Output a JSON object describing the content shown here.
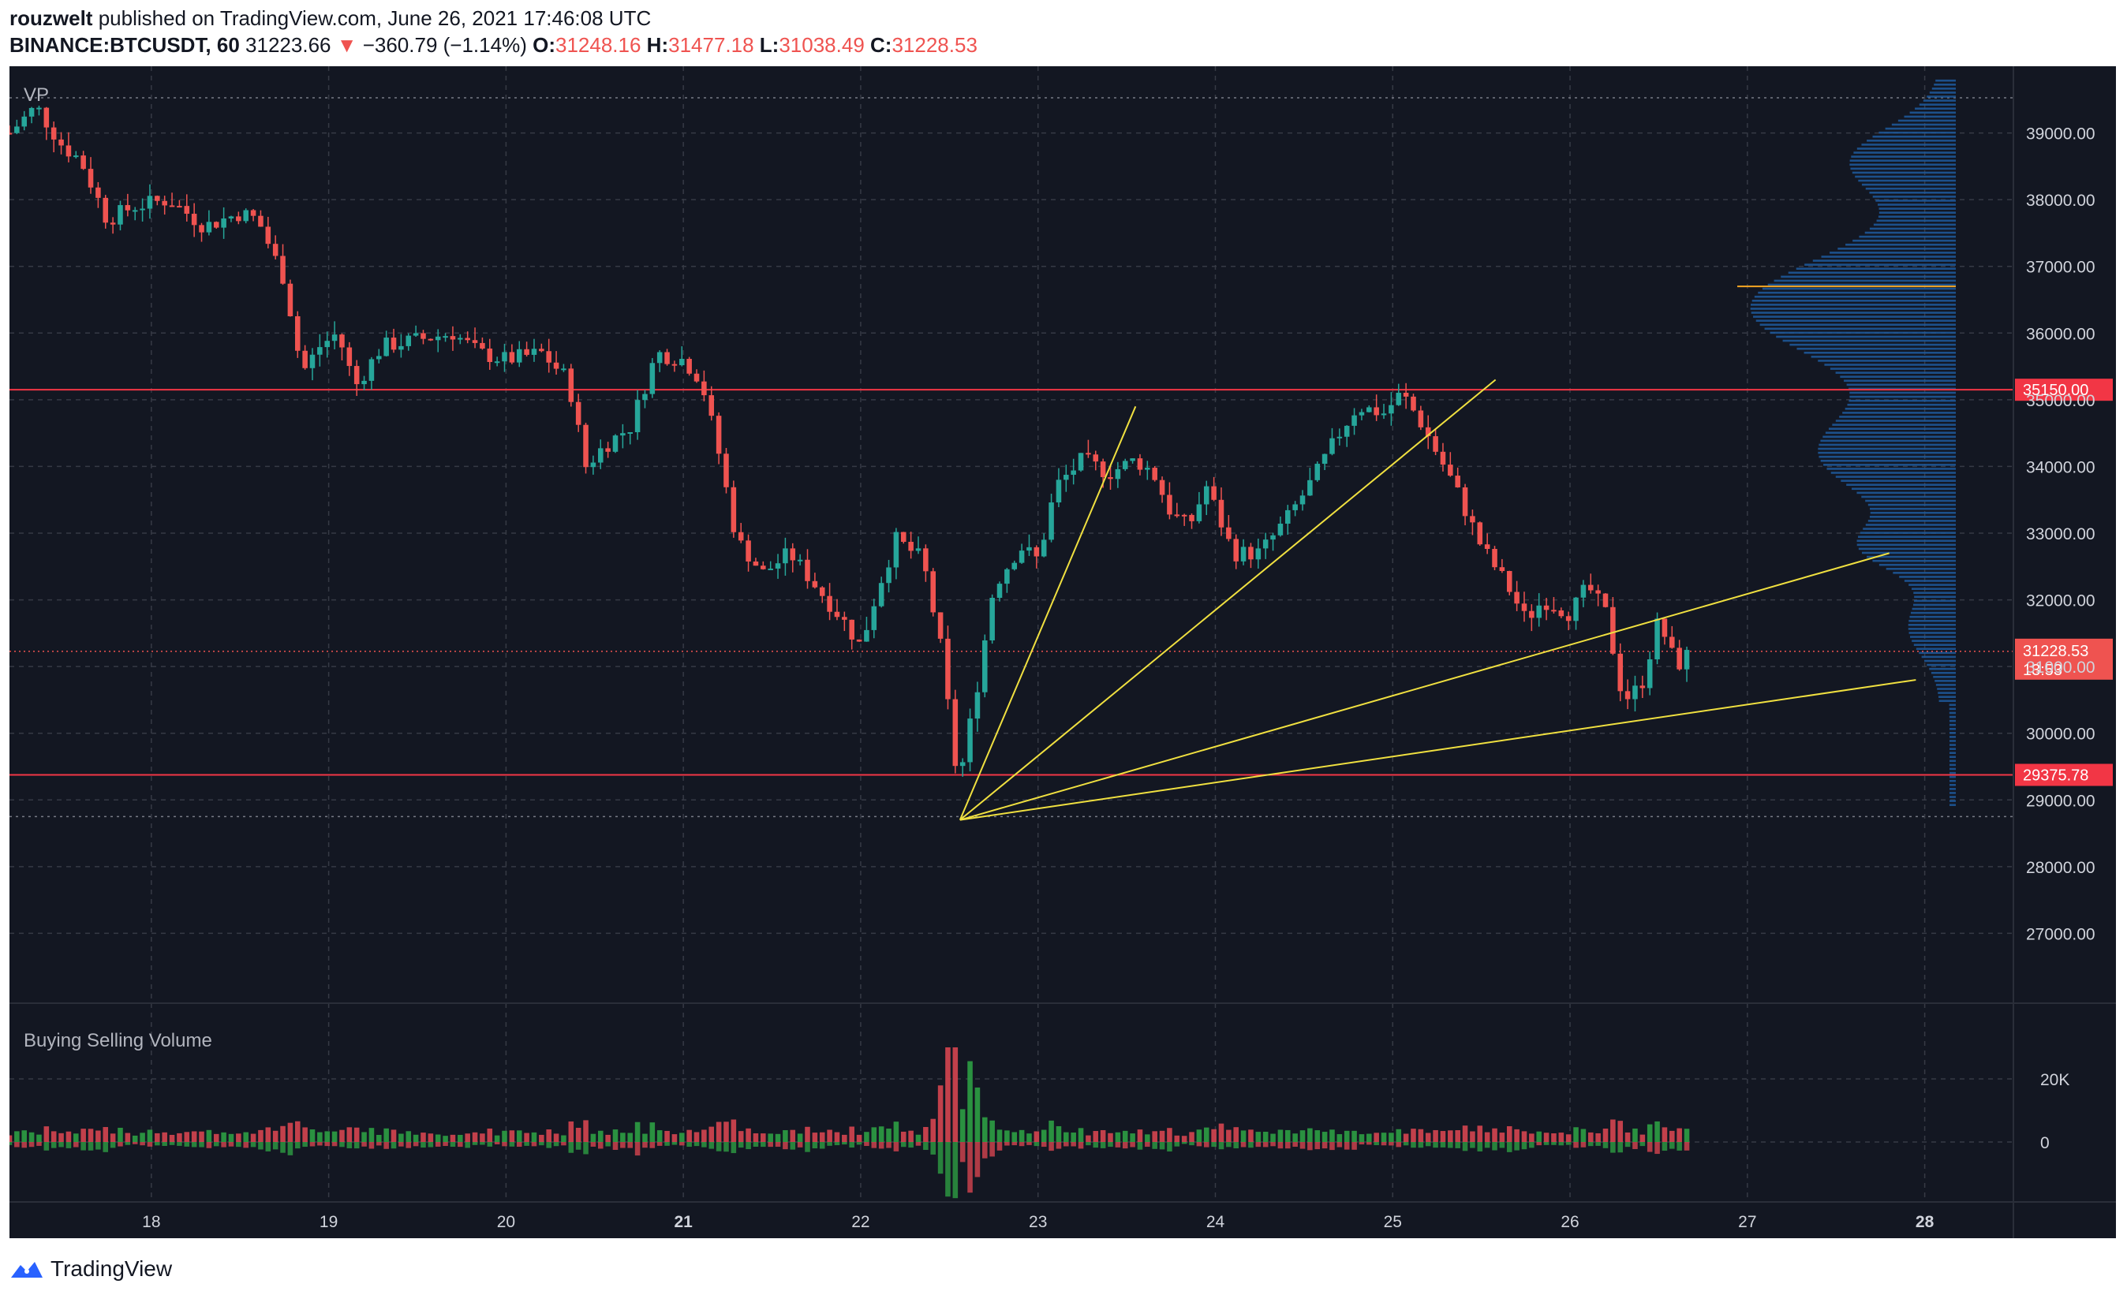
{
  "header": {
    "author": "rouzwelt",
    "published": "published on TradingView.com, June 26, 2021 17:46:08 UTC",
    "symbol": "BINANCE:BTCUSDT, 60",
    "last_price": "31223.66",
    "change": "−360.79 (−1.14%)",
    "o_label": "O:",
    "o_value": "31248.16",
    "h_label": "H:",
    "h_value": "31477.18",
    "l_label": "L:",
    "l_value": "31038.49",
    "c_label": "C:",
    "c_value": "31228.53"
  },
  "footer": {
    "brand": "TradingView"
  },
  "colors": {
    "up": "#26a69a",
    "down": "#ef5350",
    "background": "#131722",
    "grid": "#363a45",
    "volume_profile": "#1e5b9e",
    "fan": "#f0e040",
    "level": "#f23645"
  },
  "chart_data": {
    "type": "candlestick",
    "title": "",
    "x_ticks": [
      "18",
      "19",
      "20",
      "21",
      "22",
      "23",
      "24",
      "25",
      "26",
      "27",
      "28"
    ],
    "y_ticks": [
      "39000.00",
      "38000.00",
      "37000.00",
      "36000.00",
      "35000.00",
      "34000.00",
      "33000.00",
      "32000.00",
      "31000.00",
      "30000.00",
      "29000.00",
      "28000.00",
      "27000.00"
    ],
    "ylim": [
      26000,
      40000
    ],
    "xlim_days": [
      17.2,
      28.5
    ],
    "profile_label": "VP",
    "volume_pane": {
      "title": "Buying Selling Volume",
      "y_ticks": [
        "20K",
        "0"
      ]
    },
    "horizontal_levels": [
      {
        "value": 35150.0,
        "label": "35150.00"
      },
      {
        "value": 29375.78,
        "label": "29375.78"
      }
    ],
    "current_price": {
      "value": 31228.53,
      "label": "31228.53",
      "countdown": "13:53"
    },
    "poc_level": 36700,
    "fan_origin": {
      "day": 22.56,
      "price": 28700
    },
    "fan_lines": [
      {
        "to_day": 23.55,
        "to_price": 34900
      },
      {
        "to_day": 25.58,
        "to_price": 35300
      },
      {
        "to_day": 27.8,
        "to_price": 32700
      },
      {
        "to_day": 27.95,
        "to_price": 30800
      }
    ],
    "price_path": [
      [
        17.2,
        39000
      ],
      [
        17.35,
        39400
      ],
      [
        17.5,
        38800
      ],
      [
        17.6,
        38600
      ],
      [
        17.75,
        37700
      ],
      [
        17.9,
        37900
      ],
      [
        18.1,
        38000
      ],
      [
        18.3,
        37600
      ],
      [
        18.5,
        37800
      ],
      [
        18.6,
        37700
      ],
      [
        18.75,
        36800
      ],
      [
        18.85,
        35400
      ],
      [
        18.95,
        35800
      ],
      [
        19.05,
        36000
      ],
      [
        19.15,
        35200
      ],
      [
        19.3,
        35800
      ],
      [
        19.5,
        35900
      ],
      [
        19.7,
        36000
      ],
      [
        19.85,
        35700
      ],
      [
        20.0,
        35600
      ],
      [
        20.2,
        35700
      ],
      [
        20.35,
        35300
      ],
      [
        20.45,
        34000
      ],
      [
        20.55,
        34300
      ],
      [
        20.7,
        34600
      ],
      [
        20.85,
        35700
      ],
      [
        21.0,
        35600
      ],
      [
        21.1,
        35300
      ],
      [
        21.2,
        34200
      ],
      [
        21.3,
        32900
      ],
      [
        21.45,
        32400
      ],
      [
        21.6,
        32700
      ],
      [
        21.75,
        32200
      ],
      [
        21.9,
        31700
      ],
      [
        22.0,
        31300
      ],
      [
        22.1,
        32200
      ],
      [
        22.2,
        32900
      ],
      [
        22.35,
        32600
      ],
      [
        22.45,
        31300
      ],
      [
        22.55,
        29200
      ],
      [
        22.65,
        30600
      ],
      [
        22.75,
        32200
      ],
      [
        22.9,
        32800
      ],
      [
        23.0,
        32600
      ],
      [
        23.1,
        33700
      ],
      [
        23.25,
        34100
      ],
      [
        23.4,
        33900
      ],
      [
        23.55,
        34100
      ],
      [
        23.65,
        33900
      ],
      [
        23.75,
        33300
      ],
      [
        23.85,
        33100
      ],
      [
        23.95,
        33700
      ],
      [
        24.1,
        32700
      ],
      [
        24.25,
        32700
      ],
      [
        24.4,
        33200
      ],
      [
        24.55,
        33800
      ],
      [
        24.7,
        34500
      ],
      [
        24.8,
        34900
      ],
      [
        24.95,
        34800
      ],
      [
        25.05,
        35100
      ],
      [
        25.15,
        34700
      ],
      [
        25.25,
        34200
      ],
      [
        25.35,
        33700
      ],
      [
        25.5,
        32800
      ],
      [
        25.65,
        32200
      ],
      [
        25.75,
        31700
      ],
      [
        25.85,
        32000
      ],
      [
        26.0,
        31800
      ],
      [
        26.1,
        32200
      ],
      [
        26.2,
        31800
      ],
      [
        26.3,
        30500
      ],
      [
        26.4,
        30700
      ],
      [
        26.5,
        31700
      ],
      [
        26.6,
        31000
      ],
      [
        26.68,
        31228
      ]
    ]
  }
}
